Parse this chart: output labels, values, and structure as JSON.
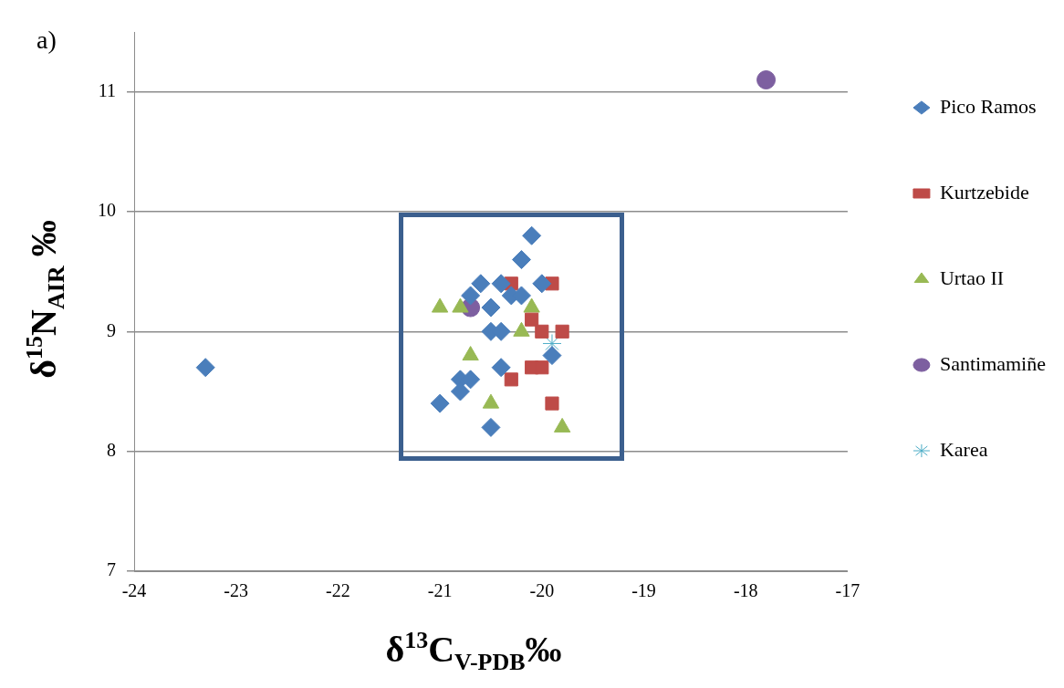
{
  "chart_data": {
    "type": "scatter",
    "xlabel": "δ$^{13}$C$_{V-PDB}$‰",
    "ylabel": "δ$^{15}$N$_{AIR}$ ‰",
    "annotations": [
      "a)"
    ],
    "xlim": [
      -24,
      -17
    ],
    "xticks": [
      -24,
      -23,
      -22,
      -21,
      -20,
      -19,
      -18,
      -17
    ],
    "ylim": [
      7,
      11.5
    ],
    "yticks": [
      7,
      8,
      9,
      10,
      11
    ],
    "grid": "y",
    "legend": "right",
    "series": [
      {
        "name": "Pico Ramos",
        "color": "#4a7ebb",
        "marker": "diamond",
        "x": [
          -23.3,
          -20.1,
          -20.2,
          -20.6,
          -20.4,
          -20.0,
          -20.7,
          -20.3,
          -20.2,
          -20.5,
          -20.5,
          -20.4,
          -19.9,
          -20.4,
          -20.8,
          -20.7,
          -20.8,
          -21.0,
          -20.5
        ],
        "values": [
          8.7,
          9.8,
          9.6,
          9.4,
          9.4,
          9.4,
          9.3,
          9.3,
          9.3,
          9.2,
          9.0,
          9.0,
          8.8,
          8.7,
          8.6,
          8.6,
          8.5,
          8.4,
          8.2
        ]
      },
      {
        "name": "Kurtzebide",
        "color": "#be4b48",
        "marker": "square",
        "x": [
          -20.3,
          -19.9,
          -20.1,
          -20.0,
          -19.8,
          -20.1,
          -20.0,
          -20.3,
          -19.9
        ],
        "values": [
          9.4,
          9.4,
          9.1,
          9.0,
          9.0,
          8.7,
          8.7,
          8.6,
          8.4
        ]
      },
      {
        "name": "Urtao II",
        "color": "#98b954",
        "marker": "triangle",
        "x": [
          -21.0,
          -20.8,
          -20.1,
          -20.2,
          -20.7,
          -20.5,
          -19.8
        ],
        "values": [
          9.2,
          9.2,
          9.2,
          9.0,
          8.8,
          8.4,
          8.2
        ]
      },
      {
        "name": "Santimamiñe",
        "color": "#7d5fa0",
        "marker": "circle",
        "x": [
          -20.7,
          -17.8
        ],
        "values": [
          9.2,
          11.1
        ]
      },
      {
        "name": "Karea",
        "color": "#4bacc6",
        "marker": "cross",
        "x": [
          -19.9
        ],
        "values": [
          8.9
        ]
      }
    ]
  }
}
